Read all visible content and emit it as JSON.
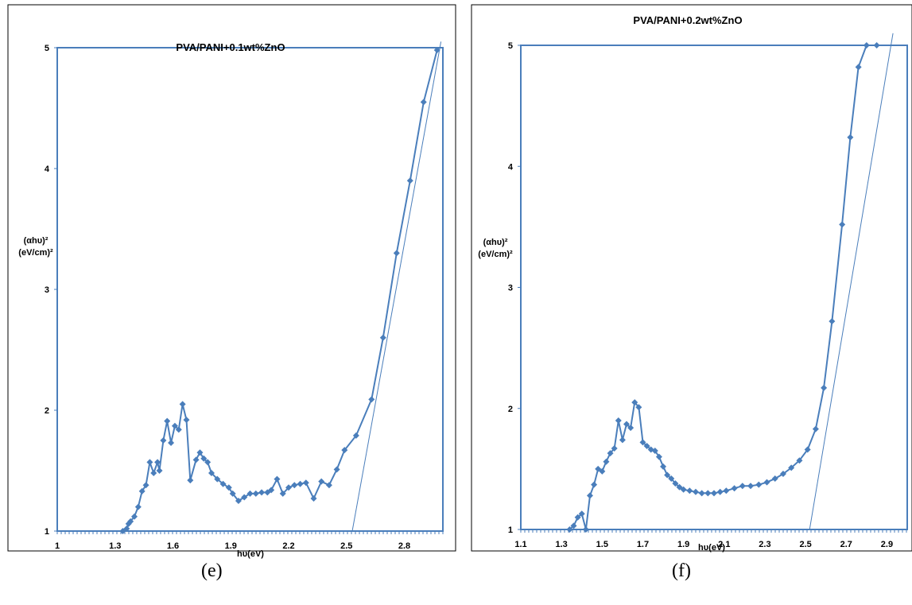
{
  "colors": {
    "series": "#4a7ebb",
    "frame": "#000000",
    "axis_text": "#000000"
  },
  "captions": [
    "(e)",
    "(f)"
  ],
  "chart_data": [
    {
      "type": "line",
      "title": "PVA/PANI+0.1wt%ZnO",
      "xlabel": "hυ(eV)",
      "ylabel": [
        "(αhυ)²",
        "(eV/cm)²"
      ],
      "xlim": [
        1.0,
        3.0
      ],
      "ylim": [
        1,
        5
      ],
      "xticks": [
        1,
        1.3,
        1.6,
        1.9,
        2.2,
        2.5,
        2.8
      ],
      "yticks": [
        1,
        2,
        3,
        4,
        5
      ],
      "series": [
        {
          "x": [
            1.34,
            1.36,
            1.37,
            1.38,
            1.4,
            1.42,
            1.44,
            1.46,
            1.48,
            1.5,
            1.52,
            1.53,
            1.55,
            1.57,
            1.59,
            1.61,
            1.63,
            1.65,
            1.67,
            1.69,
            1.72,
            1.74,
            1.76,
            1.78,
            1.8,
            1.83,
            1.86,
            1.89,
            1.91,
            1.94,
            1.97,
            2.0,
            2.03,
            2.06,
            2.09,
            2.11,
            2.14,
            2.17,
            2.2,
            2.23,
            2.26,
            2.29,
            2.33,
            2.37,
            2.41,
            2.45,
            2.49,
            2.55,
            2.63,
            2.69,
            2.76,
            2.83,
            2.9,
            2.97
          ],
          "y": [
            1.0,
            1.02,
            1.06,
            1.08,
            1.12,
            1.2,
            1.33,
            1.38,
            1.57,
            1.48,
            1.57,
            1.5,
            1.75,
            1.91,
            1.73,
            1.87,
            1.84,
            2.05,
            1.92,
            1.42,
            1.59,
            1.65,
            1.6,
            1.57,
            1.48,
            1.43,
            1.39,
            1.36,
            1.31,
            1.25,
            1.28,
            1.31,
            1.31,
            1.32,
            1.32,
            1.34,
            1.43,
            1.31,
            1.36,
            1.38,
            1.39,
            1.4,
            1.27,
            1.41,
            1.38,
            1.51,
            1.67,
            1.79,
            2.09,
            2.6,
            3.3,
            3.9,
            4.55,
            4.98
          ]
        }
      ],
      "fit_line": {
        "x": [
          2.53,
          2.99
        ],
        "y": [
          1,
          5.05
        ]
      }
    },
    {
      "type": "line",
      "title": "PVA/PANI+0.2wt%ZnO",
      "xlabel": "hυ(eV)",
      "ylabel": [
        "(αhυ)²",
        "(eV/cm)²"
      ],
      "xlim": [
        1.1,
        3.0
      ],
      "ylim": [
        1,
        5
      ],
      "xticks": [
        1.1,
        1.3,
        1.5,
        1.7,
        1.9,
        2.1,
        2.3,
        2.5,
        2.7,
        2.9
      ],
      "yticks": [
        1,
        2,
        3,
        4,
        5
      ],
      "series": [
        {
          "x": [
            1.34,
            1.36,
            1.38,
            1.4,
            1.42,
            1.44,
            1.46,
            1.48,
            1.5,
            1.52,
            1.54,
            1.56,
            1.58,
            1.6,
            1.62,
            1.64,
            1.66,
            1.68,
            1.7,
            1.72,
            1.74,
            1.76,
            1.78,
            1.8,
            1.82,
            1.84,
            1.86,
            1.88,
            1.9,
            1.93,
            1.96,
            1.99,
            2.02,
            2.05,
            2.08,
            2.11,
            2.15,
            2.19,
            2.23,
            2.27,
            2.31,
            2.35,
            2.39,
            2.43,
            2.47,
            2.51,
            2.55,
            2.59,
            2.63,
            2.68,
            2.72,
            2.76,
            2.8,
            2.85
          ],
          "y": [
            1.0,
            1.03,
            1.1,
            1.13,
            1.0,
            1.28,
            1.37,
            1.5,
            1.48,
            1.56,
            1.63,
            1.67,
            1.9,
            1.74,
            1.87,
            1.84,
            2.05,
            2.01,
            1.72,
            1.69,
            1.66,
            1.65,
            1.6,
            1.52,
            1.45,
            1.42,
            1.38,
            1.35,
            1.33,
            1.32,
            1.31,
            1.3,
            1.3,
            1.3,
            1.31,
            1.32,
            1.34,
            1.36,
            1.36,
            1.37,
            1.39,
            1.42,
            1.46,
            1.51,
            1.57,
            1.66,
            1.83,
            2.17,
            2.72,
            3.52,
            4.24,
            4.82,
            5.0,
            5.0
          ]
        }
      ],
      "fit_line": {
        "x": [
          2.52,
          2.93
        ],
        "y": [
          1,
          5.1
        ]
      }
    }
  ]
}
